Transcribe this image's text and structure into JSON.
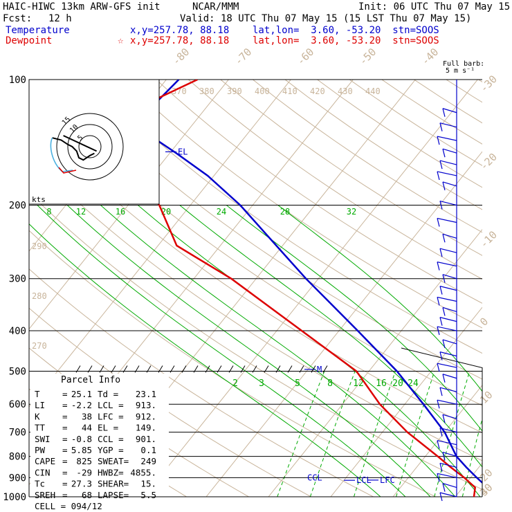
{
  "header": {
    "model": "HAIC-HIWC 13km ARW-GFS init",
    "org": "NCAR/MMM",
    "init": "Init: 06 UTC Thu 07 May 15",
    "fcst_label": "Fcst:",
    "fcst_value": "12 h",
    "valid": "Valid: 18 UTC Thu 07 May 15 (15 LST Thu 07 May 15)",
    "temp_label": "Temperature",
    "temp_loc": "x,y=257.78, 88.18    lat,lon=  3.60, -53.20  stn=SOOS",
    "dew_label": "Dewpoint",
    "dew_star": "☆",
    "dew_loc": "x,y=257.78, 88.18    lat,lon=  3.60, -53.20  stn=SOOS"
  },
  "colors": {
    "temperature": "#0000cc",
    "dewpoint": "#dd0000",
    "dry_adiabat": "#c8b49a",
    "moist_adiabat": "#00aa00",
    "mixing_ratio": "#00aa00",
    "isobar": "#000000"
  },
  "chart_data": {
    "type": "line",
    "title": "Skew-T log-P sounding",
    "pressure_levels": [
      100,
      200,
      300,
      400,
      500,
      600,
      700,
      800,
      900,
      1000
    ],
    "isotherm_labels": [
      -80,
      -70,
      -60,
      -50,
      -40,
      -30,
      -20,
      -10,
      0,
      10,
      20,
      30,
      40
    ],
    "theta_labels_upper": [
      370,
      380,
      390,
      400,
      410,
      420,
      430,
      440
    ],
    "theta_labels_left": [
      290,
      280,
      270
    ],
    "moist_adiabat_labels": [
      8,
      12,
      16,
      20,
      24,
      28,
      32
    ],
    "mixing_ratio_labels": [
      2,
      3,
      5,
      8,
      12,
      16,
      20,
      24
    ],
    "series": [
      {
        "name": "Temperature",
        "p": [
          1000,
          950,
          900,
          850,
          800,
          700,
          600,
          500,
          400,
          300,
          250,
          200,
          170,
          150,
          135,
          120,
          100
        ],
        "t": [
          26.5,
          24.0,
          21.0,
          18.0,
          15.0,
          10.0,
          3.0,
          -5.5,
          -17.0,
          -32.0,
          -41.0,
          -52.0,
          -61.0,
          -69.0,
          -76.0,
          -79.0,
          -78.0
        ]
      },
      {
        "name": "Dewpoint",
        "p": [
          1000,
          950,
          900,
          850,
          800,
          700,
          600,
          500,
          400,
          300,
          250,
          200,
          170,
          150,
          140,
          130,
          120,
          100
        ],
        "t": [
          23.0,
          22.0,
          19.0,
          15.5,
          12.0,
          4.0,
          -4.0,
          -12.0,
          -26.0,
          -44.0,
          -57.0,
          -65.0,
          -72.0,
          -79.0,
          -87.0,
          -86.0,
          -82.0,
          -75.0
        ]
      }
    ],
    "annotations": [
      {
        "text": "EL",
        "p": 149,
        "series": "Temperature"
      },
      {
        "text": "CCL",
        "p": 901
      },
      {
        "text": "LCL",
        "p": 913
      },
      {
        "text": "LFC",
        "p": 912
      },
      {
        "text": "M",
        "p": 495
      }
    ],
    "hodograph": {
      "rings": [
        5,
        10,
        15
      ],
      "units": "kts",
      "points": [
        [
          -17,
          4
        ],
        [
          -13,
          3
        ],
        [
          -10,
          1
        ],
        [
          -8,
          0
        ],
        [
          -6,
          -2
        ],
        [
          -5,
          -5
        ],
        [
          -3,
          -6
        ],
        [
          0,
          -4
        ],
        [
          2,
          -3
        ]
      ]
    },
    "wind_profile_label": "Full barb:",
    "wind_profile_units": "5 m s⁻¹"
  },
  "parcel_info": {
    "title": "Parcel Info",
    "rows": [
      [
        "T",
        "=",
        "25.1",
        "Td =",
        "23.1"
      ],
      [
        "LI",
        "=",
        "-2.2",
        "LCL =",
        "913."
      ],
      [
        "K",
        "=",
        "38",
        "LFC =",
        "912."
      ],
      [
        "TT",
        "=",
        "44",
        "EL =",
        "149."
      ],
      [
        "SWI",
        "=",
        "-0.8",
        "CCL =",
        "901."
      ],
      [
        "PW",
        "=",
        "5.85",
        "YGP =",
        "0.1"
      ],
      [
        "CAPE",
        "=",
        "825",
        "SWEAT=",
        "249"
      ],
      [
        "CIN",
        "=",
        "-29",
        "HWBZ=",
        "4855."
      ],
      [
        "Tc",
        "=",
        "27.3",
        "SHEAR=",
        "15."
      ],
      [
        "SREH",
        "=",
        "68",
        "LAPSE=",
        "5.5"
      ]
    ],
    "cell": "CELL = 094/12"
  }
}
